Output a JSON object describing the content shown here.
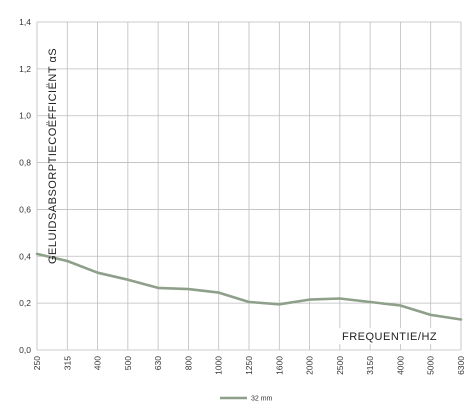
{
  "chart_data": {
    "type": "line",
    "title": "",
    "xlabel": "FREQUENTIE/HZ",
    "ylabel": "GELUIDSABSORPTIECOËFFICIËNT αS",
    "categories": [
      "250",
      "315",
      "400",
      "500",
      "630",
      "800",
      "1000",
      "1250",
      "1600",
      "2000",
      "2500",
      "3150",
      "4000",
      "5000",
      "6300"
    ],
    "ylim": [
      0,
      1.4
    ],
    "yticks": [
      "0,0",
      "0,2",
      "0,4",
      "0,6",
      "0,8",
      "1,0",
      "1,2",
      "1,4"
    ],
    "grid": true,
    "legend_position": "bottom-center",
    "series": [
      {
        "name": "32 mm",
        "color": "#8ea08a",
        "values": [
          0.41,
          0.38,
          0.33,
          0.3,
          0.265,
          0.26,
          0.245,
          0.205,
          0.195,
          0.215,
          0.22,
          0.205,
          0.19,
          0.15,
          0.13
        ]
      }
    ]
  }
}
